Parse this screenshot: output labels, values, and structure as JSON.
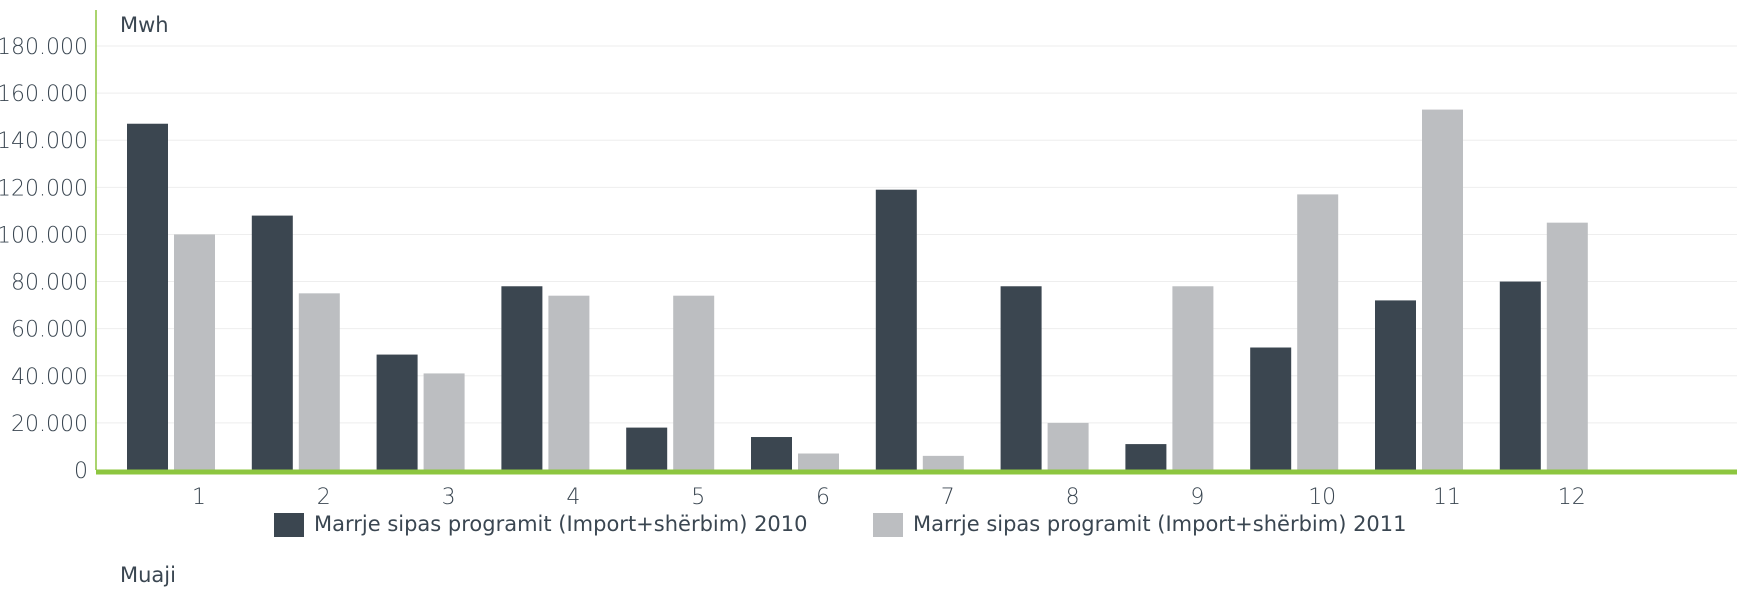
{
  "chart_data": {
    "type": "bar",
    "ylabel": "Mwh",
    "xlabel": "Muaji",
    "categories": [
      "1",
      "2",
      "3",
      "4",
      "5",
      "6",
      "7",
      "8",
      "9",
      "10",
      "11",
      "12"
    ],
    "yticks": [
      "0",
      "20.000",
      "40.000",
      "60.000",
      "80.000",
      "100.000",
      "120.000",
      "140.000",
      "160.000",
      "180.000"
    ],
    "ylim": [
      0,
      180000
    ],
    "grid": true,
    "legend_position": "bottom",
    "series": [
      {
        "name": "Marrje sipas programit (Import+shërbim) 2010",
        "color": "#3b4650",
        "values": [
          147000,
          108000,
          49000,
          78000,
          18000,
          14000,
          119000,
          78000,
          11000,
          52000,
          72000,
          80000
        ]
      },
      {
        "name": "Marrje sipas programit (Import+shërbim) 2011",
        "color": "#bcbec1",
        "values": [
          100000,
          75000,
          41000,
          74000,
          74000,
          7000,
          6000,
          20000,
          78000,
          117000,
          153000,
          105000
        ]
      }
    ]
  },
  "colors": {
    "grid": "#eeeeee",
    "axis": "#8dc63f",
    "text": "#3a4651"
  }
}
